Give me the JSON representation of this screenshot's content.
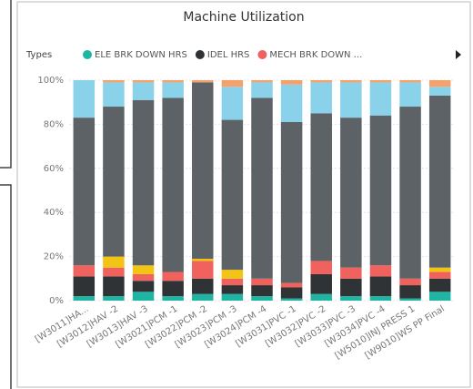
{
  "chart_data": {
    "type": "stacked_bar_100",
    "title": "Machine Utilization",
    "legend_title": "Types",
    "categories": [
      "[W3011]HA...",
      "[W3012]HAV -2",
      "[W3013]HAV -3",
      "[W3021]PCM -1",
      "[W3022]PCM -2",
      "[W3023]PCM -3",
      "[W3024]PCM -4",
      "[W3031]PVC -1",
      "[W3032]PVC -2",
      "[W3033]PVC -3",
      "[W3034]PVC -4",
      "[W5010]INJ PRESS 1",
      "[W9010]WS PP Final"
    ],
    "series": [
      {
        "name": "ELE BRK DOWN HRS",
        "color": "#1fb5a5",
        "values": [
          2,
          2,
          4,
          2,
          3,
          3,
          2,
          1,
          3,
          2,
          2,
          1,
          4
        ]
      },
      {
        "name": "IDEL HRS",
        "color": "#2f3336",
        "values": [
          9,
          9,
          5,
          7,
          7,
          4,
          5,
          5,
          9,
          8,
          9,
          6,
          6
        ]
      },
      {
        "name": "MECH BRK DOWN ...",
        "color": "#f0625e",
        "values": [
          5,
          4,
          3,
          4,
          8,
          3,
          3,
          2,
          6,
          5,
          5,
          3,
          3
        ]
      },
      {
        "color": "#f2c414",
        "values": [
          0,
          5,
          4,
          0,
          1,
          4,
          0,
          0,
          0,
          0,
          0,
          0,
          2
        ]
      },
      {
        "color": "#5c6266",
        "values": [
          67,
          68,
          75,
          79,
          80,
          68,
          82,
          73,
          67,
          68,
          68,
          78,
          78
        ]
      },
      {
        "color": "#8ad1ea",
        "values": [
          17,
          11,
          8,
          7,
          0,
          15,
          7,
          17,
          14,
          16,
          15,
          11,
          4
        ]
      },
      {
        "color": "#f4a26c",
        "values": [
          0,
          1,
          1,
          1,
          1,
          3,
          1,
          2,
          1,
          1,
          1,
          1,
          3
        ]
      }
    ],
    "ylim": [
      0,
      100
    ],
    "yticks": [
      {
        "value": 0,
        "label": "0%"
      },
      {
        "value": 20,
        "label": "20%"
      },
      {
        "value": 40,
        "label": "40%"
      },
      {
        "value": 60,
        "label": "60%"
      },
      {
        "value": 80,
        "label": "80%"
      },
      {
        "value": 100,
        "label": "100%"
      }
    ],
    "grid": true
  }
}
